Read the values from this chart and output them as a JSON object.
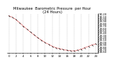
{
  "title": "Milwaukee  Barometric Pressure  per Hour\n(24 Hours)",
  "hours": [
    0,
    1,
    2,
    3,
    4,
    5,
    6,
    7,
    8,
    9,
    10,
    11,
    12,
    13,
    14,
    15,
    16,
    17,
    18,
    19,
    20,
    21,
    22,
    23,
    24
  ],
  "pressure": [
    30.12,
    30.05,
    29.95,
    29.82,
    29.68,
    29.55,
    29.42,
    29.3,
    29.18,
    29.08,
    28.98,
    28.9,
    28.82,
    28.76,
    28.72,
    28.68,
    28.65,
    28.63,
    28.62,
    28.65,
    28.7,
    28.76,
    28.82,
    28.88,
    28.92
  ],
  "line_color": "#cc0000",
  "marker_color": "#000000",
  "bg_color": "#ffffff",
  "grid_color": "#888888",
  "title_color": "#000000",
  "ylim_min": 28.55,
  "ylim_max": 30.2,
  "ytick_vals": [
    28.6,
    28.7,
    28.8,
    28.9,
    29.0,
    29.1,
    29.2,
    29.3,
    29.4,
    29.5,
    29.6,
    29.7,
    29.8,
    29.9,
    30.0,
    30.1,
    30.2
  ],
  "xtick_vals": [
    0,
    2,
    4,
    6,
    8,
    10,
    12,
    14,
    16,
    18,
    20,
    22,
    24
  ],
  "title_fontsize": 3.8,
  "tick_fontsize": 2.8
}
